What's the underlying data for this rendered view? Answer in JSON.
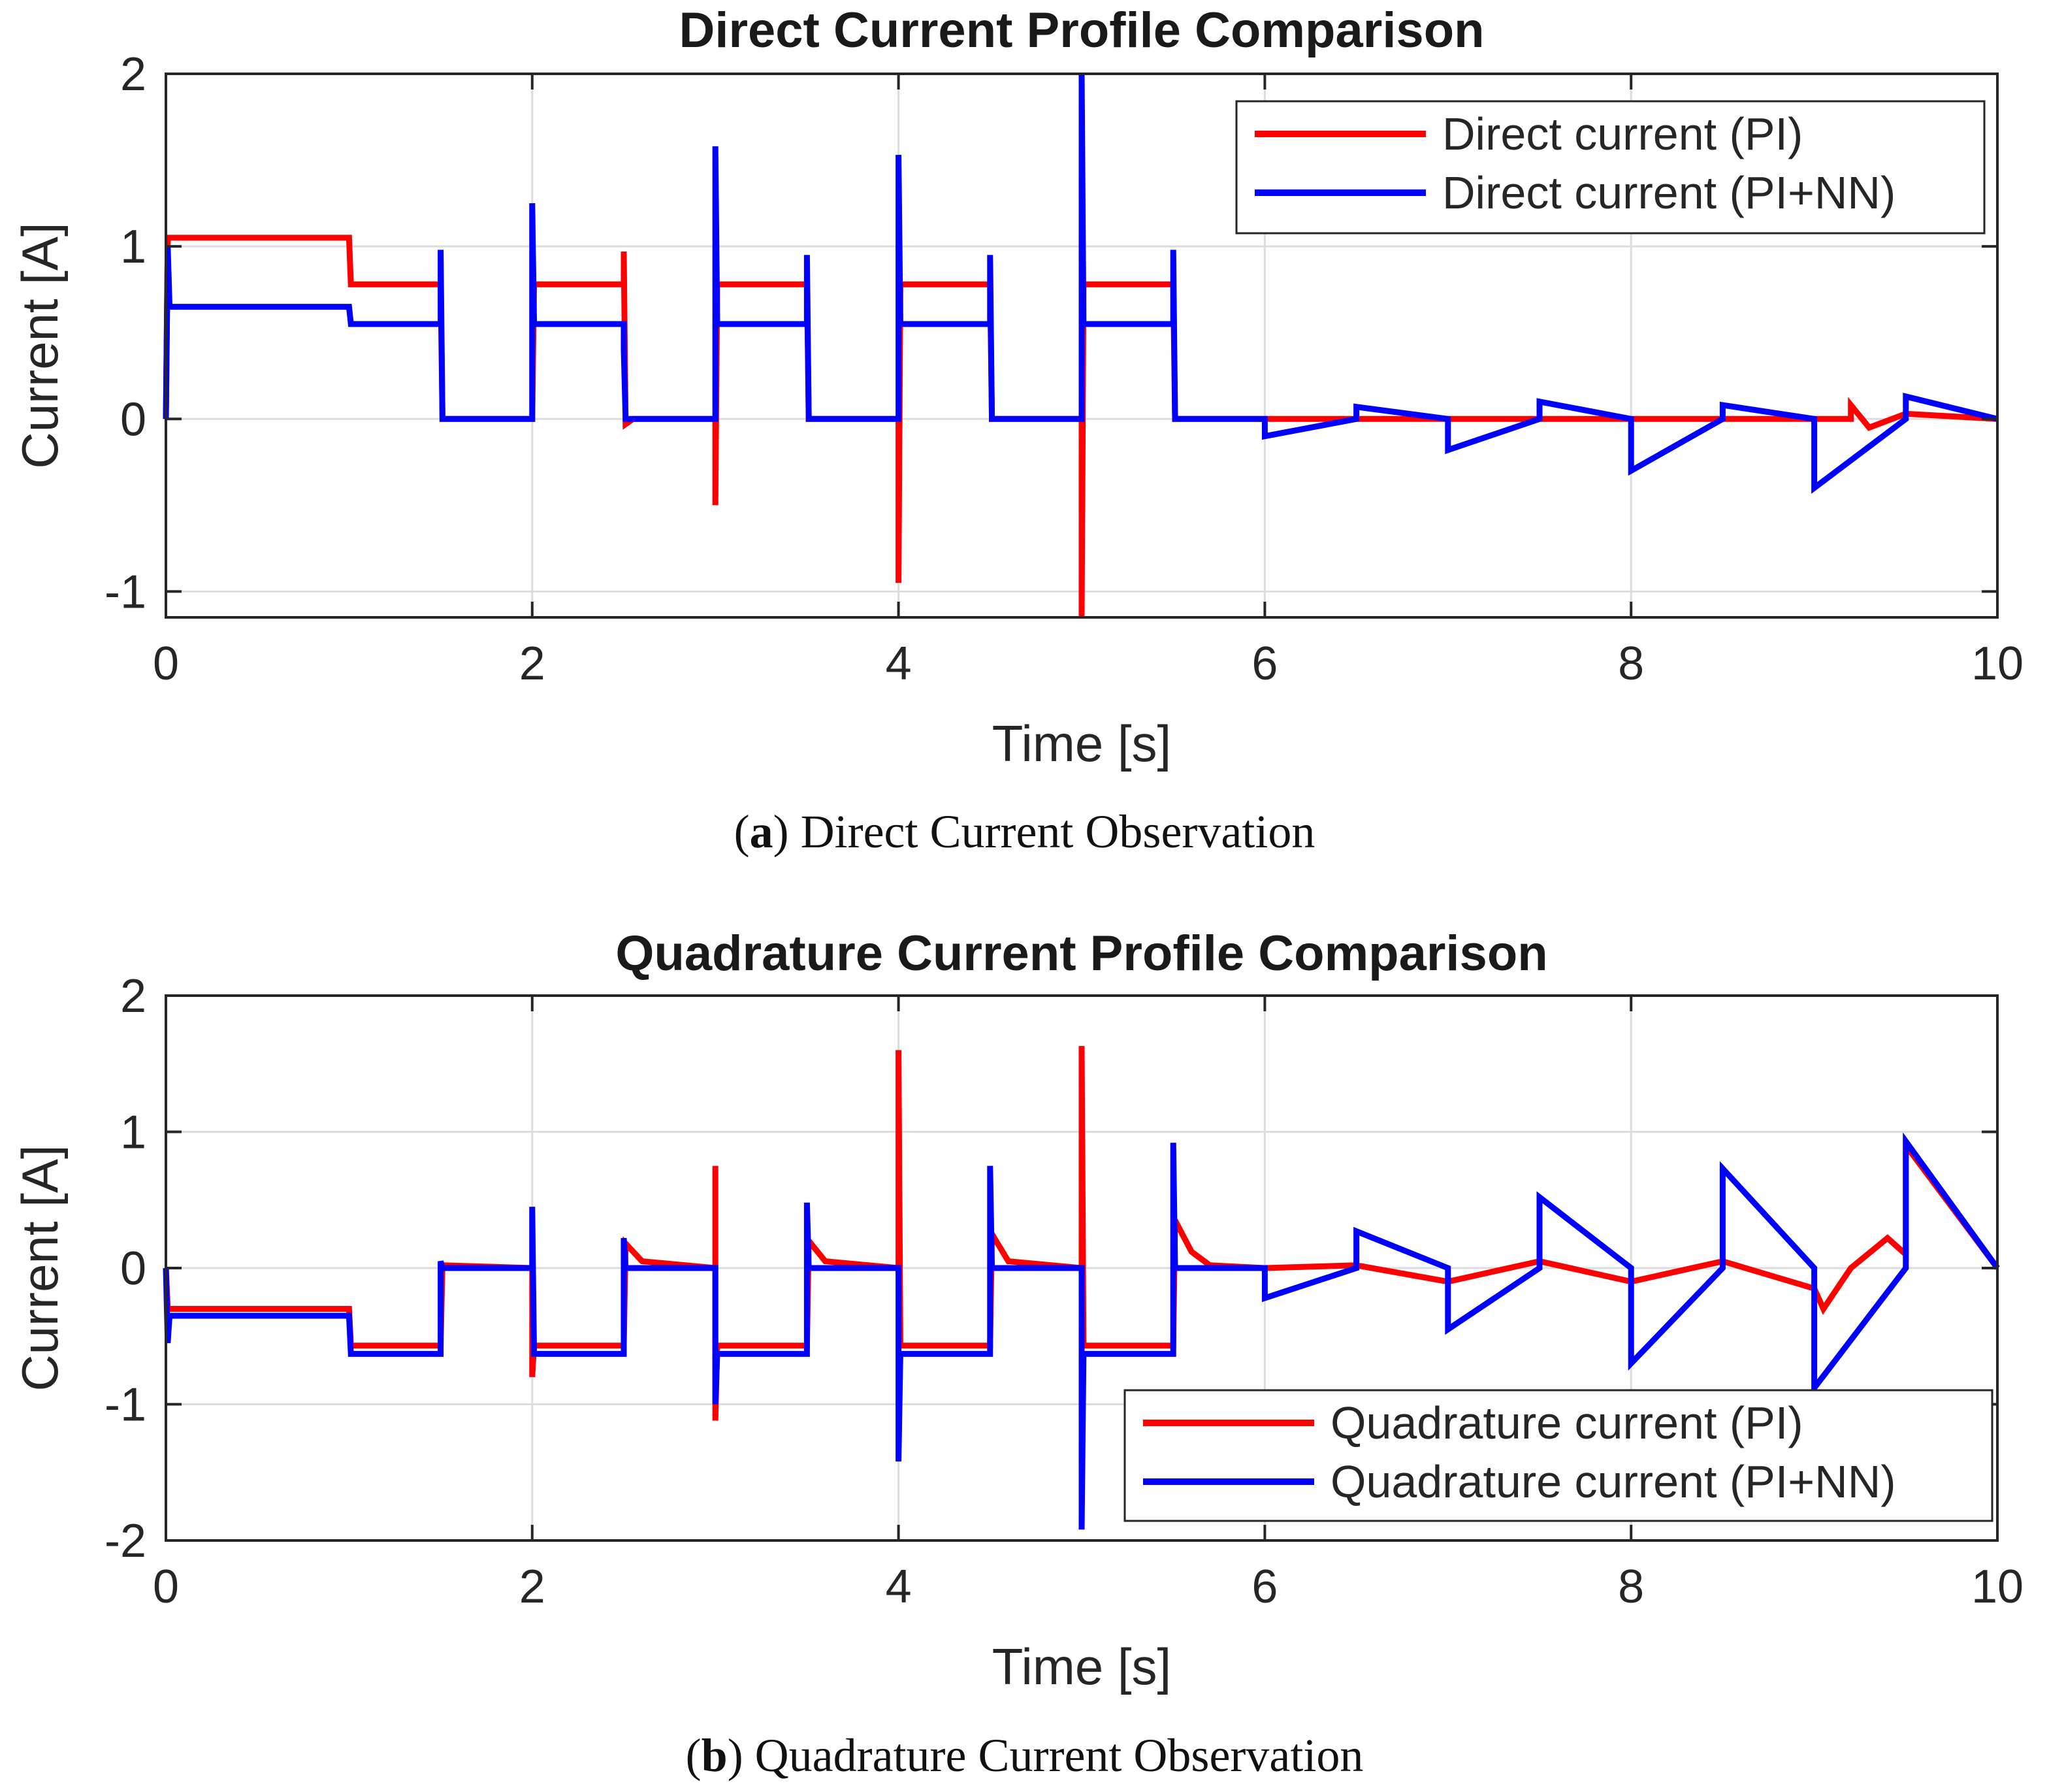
{
  "chart_data": [
    {
      "type": "line",
      "title": "Direct Current Profile Comparison",
      "xlabel": "Time [s]",
      "ylabel": "Current  [A]",
      "xlim": [
        0,
        10
      ],
      "ylim": [
        -1.15,
        2
      ],
      "xticks": [
        0,
        2,
        4,
        6,
        8,
        10
      ],
      "yticks": [
        -1,
        0,
        1,
        2
      ],
      "grid": true,
      "legend_position": "top-right",
      "colors": {
        "pi": "#ff0000",
        "pinn": "#0000ff"
      },
      "series": [
        {
          "name": "Direct current (PI)",
          "color": "#ff0000",
          "x": [
            0,
            0.01,
            0.02,
            1.0,
            1.01,
            1.5,
            1.51,
            2.0,
            2.01,
            2.5,
            2.5,
            2.51,
            2.55,
            3.0,
            3.0,
            3.01,
            3.5,
            3.51,
            4.0,
            4.0,
            4.01,
            4.5,
            4.51,
            5.0,
            5.0,
            5.01,
            5.5,
            5.51,
            6.0,
            6.5,
            7.0,
            7.5,
            8.0,
            8.5,
            9.0,
            9.2,
            9.2,
            9.3,
            9.5,
            10.0
          ],
          "y": [
            0,
            1.05,
            1.05,
            1.05,
            0.78,
            0.78,
            0,
            0,
            0.78,
            0.78,
            0.97,
            -0.03,
            0,
            0,
            -0.5,
            0.78,
            0.78,
            0,
            0,
            -0.95,
            0.78,
            0.78,
            0,
            0,
            -1.15,
            0.78,
            0.78,
            0,
            0,
            0,
            0,
            0,
            0,
            0,
            0,
            0,
            0.08,
            -0.05,
            0.03,
            0
          ]
        },
        {
          "name": "Direct current (PI+NN)",
          "color": "#0000ff",
          "x": [
            0,
            0.01,
            0.02,
            1.0,
            1.01,
            1.5,
            1.5,
            1.51,
            2.0,
            2.0,
            2.01,
            2.5,
            2.5,
            2.51,
            3.0,
            3.0,
            3.01,
            3.5,
            3.5,
            3.51,
            4.0,
            4.0,
            4.01,
            4.5,
            4.5,
            4.51,
            5.0,
            5.0,
            5.01,
            5.5,
            5.5,
            5.51,
            6.0,
            6.0,
            6.5,
            6.5,
            7.0,
            7.0,
            7.5,
            7.5,
            8.0,
            8.0,
            8.5,
            8.5,
            9.0,
            9.0,
            9.5,
            9.5,
            10.0
          ],
          "y": [
            0,
            1.0,
            0.65,
            0.65,
            0.55,
            0.55,
            0.98,
            0,
            0,
            1.25,
            0.55,
            0.55,
            0.4,
            0,
            0,
            1.58,
            0.55,
            0.55,
            0.95,
            0,
            0,
            1.53,
            0.55,
            0.55,
            0.95,
            0,
            0,
            2.0,
            0.55,
            0.55,
            0.98,
            0,
            0,
            -0.1,
            0,
            0.07,
            0,
            -0.18,
            0,
            0.1,
            0,
            -0.3,
            0,
            0.08,
            0,
            -0.4,
            0,
            0.13,
            0
          ]
        }
      ]
    },
    {
      "type": "line",
      "title": "Quadrature Current Profile Comparison",
      "xlabel": "Time [s]",
      "ylabel": "Current [A]",
      "xlim": [
        0,
        10
      ],
      "ylim": [
        -2,
        2
      ],
      "xticks": [
        0,
        2,
        4,
        6,
        8,
        10
      ],
      "yticks": [
        -2,
        -1,
        0,
        1,
        2
      ],
      "grid": true,
      "legend_position": "bottom-right",
      "colors": {
        "pi": "#ff0000",
        "pinn": "#0000ff"
      },
      "series": [
        {
          "name": "Quadrature current (PI)",
          "color": "#ff0000",
          "x": [
            0,
            0.01,
            1.0,
            1.01,
            1.5,
            1.51,
            2.0,
            2.0,
            2.01,
            2.5,
            2.51,
            2.6,
            3.0,
            3.0,
            3.0,
            3.01,
            3.5,
            3.51,
            3.6,
            4.0,
            4.0,
            4.01,
            4.5,
            4.51,
            4.6,
            5.0,
            5.0,
            5.01,
            5.5,
            5.51,
            5.6,
            5.7,
            6.0,
            6.5,
            7.0,
            7.5,
            8.0,
            8.5,
            9.0,
            9.05,
            9.2,
            9.4,
            9.5,
            9.5,
            10.0
          ],
          "y": [
            0,
            -0.3,
            -0.3,
            -0.57,
            -0.57,
            0.02,
            0,
            -0.8,
            -0.57,
            -0.57,
            0.18,
            0.05,
            0,
            0.75,
            -1.12,
            -0.57,
            -0.57,
            0.2,
            0.05,
            0,
            1.6,
            -0.57,
            -0.57,
            0.25,
            0.05,
            0,
            1.63,
            -0.57,
            -0.57,
            0.35,
            0.12,
            0.02,
            0,
            0.02,
            -0.1,
            0.05,
            -0.1,
            0.05,
            -0.15,
            -0.3,
            0.0,
            0.22,
            0.1,
            0.9,
            0
          ]
        },
        {
          "name": "Quadrature current (PI+NN)",
          "color": "#0000ff",
          "x": [
            0,
            0.01,
            0.02,
            1.0,
            1.01,
            1.5,
            1.5,
            1.51,
            2.0,
            2.0,
            2.01,
            2.5,
            2.5,
            2.51,
            3.0,
            3.0,
            3.01,
            3.5,
            3.5,
            3.51,
            4.0,
            4.0,
            4.01,
            4.5,
            4.5,
            4.51,
            5.0,
            5.0,
            5.01,
            5.5,
            5.5,
            5.51,
            6.0,
            6.0,
            6.5,
            6.5,
            7.0,
            7.0,
            7.5,
            7.5,
            8.0,
            8.0,
            8.5,
            8.5,
            9.0,
            9.0,
            9.5,
            9.5,
            10.0
          ],
          "y": [
            0,
            -0.55,
            -0.35,
            -0.35,
            -0.63,
            -0.63,
            0.05,
            0,
            0,
            0.45,
            -0.63,
            -0.63,
            0.22,
            0,
            0,
            -1.0,
            -0.63,
            -0.63,
            0.48,
            0,
            0,
            -1.42,
            -0.63,
            -0.63,
            0.75,
            0,
            0,
            -1.92,
            -0.63,
            -0.63,
            0.92,
            0,
            0,
            -0.22,
            0,
            0.27,
            0,
            -0.45,
            0,
            0.52,
            0,
            -0.7,
            0,
            0.73,
            0,
            -0.88,
            0,
            0.93,
            0
          ]
        }
      ]
    }
  ],
  "captions": [
    {
      "letter": "a",
      "text": ") Direct Current Observation"
    },
    {
      "letter": "b",
      "text": ") Quadrature Current Observation"
    }
  ],
  "caption_prefix": "("
}
